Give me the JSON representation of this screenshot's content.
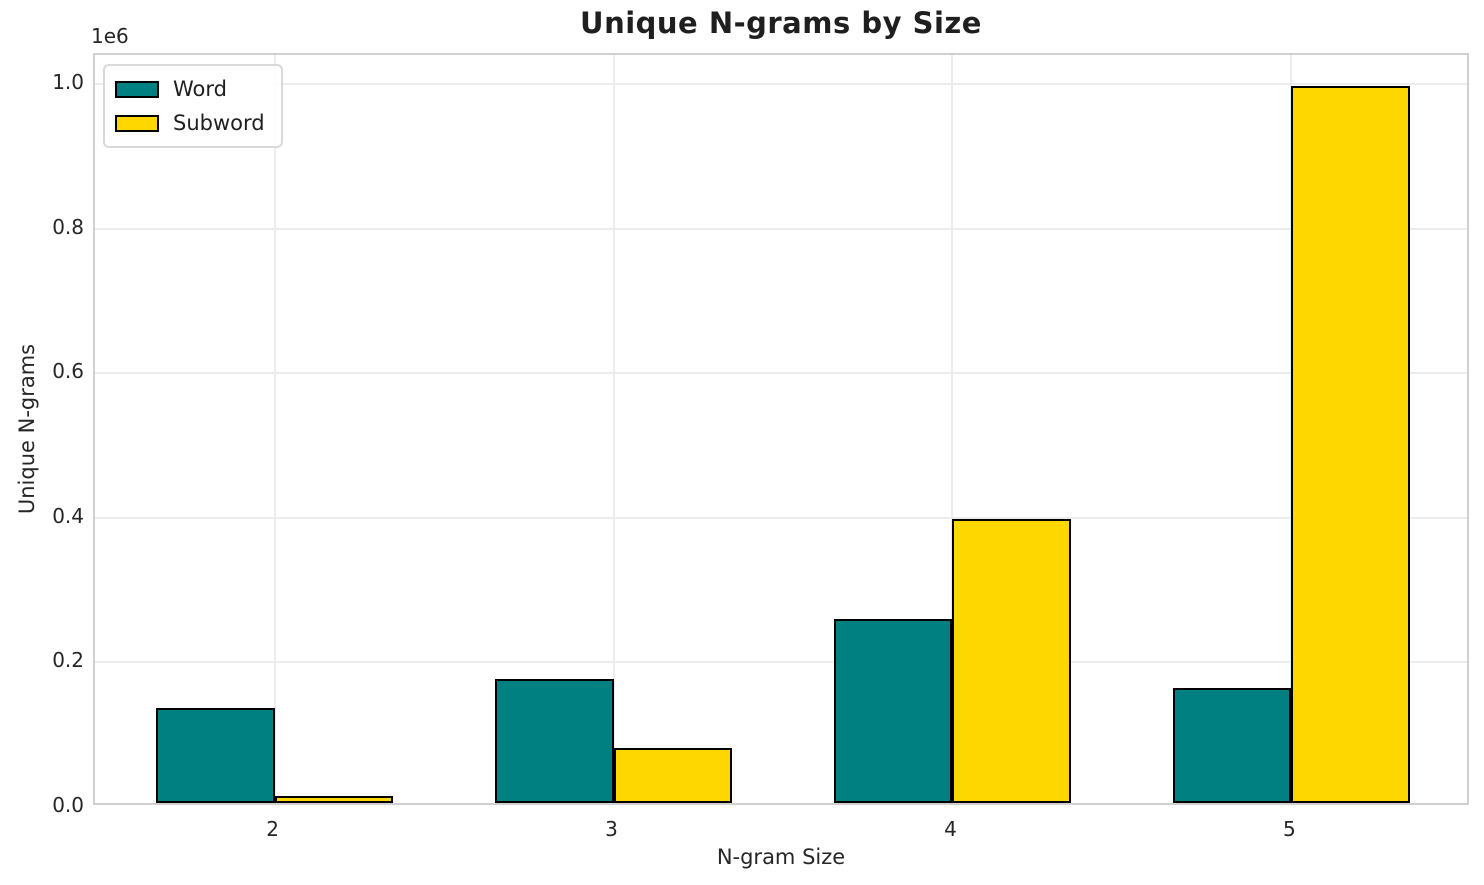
{
  "chart_data": {
    "type": "bar",
    "title": "Unique N-grams by Size",
    "xlabel": "N-gram Size",
    "ylabel": "Unique N-grams",
    "y_offset_label": "1e6",
    "categories": [
      "2",
      "3",
      "4",
      "5"
    ],
    "x_positions": [
      2,
      3,
      4,
      5
    ],
    "series": [
      {
        "name": "Word",
        "color": "#008080",
        "values": [
          131000,
          172000,
          255000,
          159000
        ]
      },
      {
        "name": "Subword",
        "color": "#FFD700",
        "values": [
          9500,
          76500,
          393000,
          991000
        ]
      }
    ],
    "bar_width": 0.35,
    "bar_edge_color": "#000000",
    "xlim": [
      1.47,
      5.53
    ],
    "ylim": [
      0,
      1040000
    ],
    "yticks": [
      0,
      200000,
      400000,
      600000,
      800000,
      1000000
    ],
    "ytick_labels": [
      "0.0",
      "0.2",
      "0.4",
      "0.6",
      "0.8",
      "1.0"
    ],
    "grid": true,
    "legend": {
      "position": "upper left",
      "entries": [
        "Word",
        "Subword"
      ]
    }
  },
  "colors": {
    "grid": "#ececec",
    "spine": "#d0d0d0",
    "text": "#262626",
    "background": "#ffffff"
  }
}
